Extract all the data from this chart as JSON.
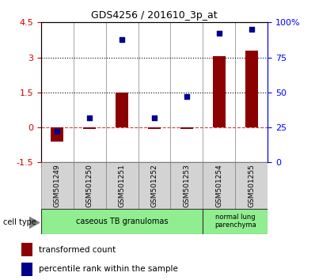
{
  "title": "GDS4256 / 201610_3p_at",
  "samples": [
    "GSM501249",
    "GSM501250",
    "GSM501251",
    "GSM501252",
    "GSM501253",
    "GSM501254",
    "GSM501255"
  ],
  "transformed_count": [
    -0.6,
    -0.05,
    1.5,
    -0.05,
    -0.05,
    3.05,
    3.3
  ],
  "percentile_rank": [
    22,
    32,
    88,
    32,
    47,
    92,
    95
  ],
  "ylim_left": [
    -1.5,
    4.5
  ],
  "ylim_right": [
    0,
    100
  ],
  "yticks_left": [
    -1.5,
    0,
    1.5,
    3,
    4.5
  ],
  "yticks_right": [
    0,
    25,
    50,
    75,
    100
  ],
  "ytick_labels_left": [
    "-1.5",
    "0",
    "1.5",
    "3",
    "4.5"
  ],
  "ytick_labels_right": [
    "0",
    "25",
    "50",
    "75",
    "100%"
  ],
  "hlines": [
    1.5,
    3.0
  ],
  "bar_color": "#8B0000",
  "scatter_color": "#00008B",
  "dashed_line_color": "#CC4444",
  "legend_bar_label": "transformed count",
  "legend_scatter_label": "percentile rank within the sample",
  "cell_type_label": "cell type",
  "bar_width": 0.4,
  "group1_label": "caseous TB granulomas",
  "group2_label": "normal lung\nparenchyma",
  "group_color": "#90EE90"
}
